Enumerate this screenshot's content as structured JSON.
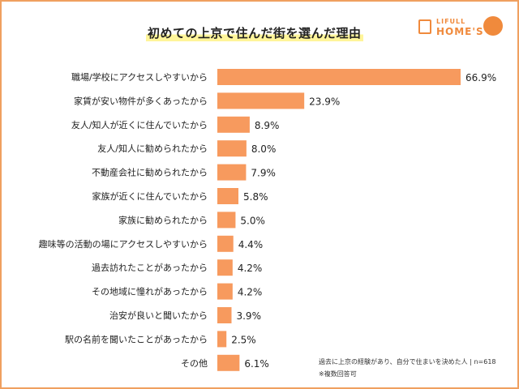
{
  "title": "初めての上京で住んだ街を選んだ理由",
  "logo": {
    "small": "LIFULL",
    "big": "HOME'S"
  },
  "notes": [
    "過去に上京の経験があり、自分で住まいを決めた人 | n=618",
    "※複数回答可"
  ],
  "colors": {
    "bar": "#f79a5e",
    "frame": "#f0a060",
    "title_highlight": "#fff59a"
  },
  "chart_data": {
    "type": "bar",
    "orientation": "horizontal",
    "title": "初めての上京で住んだ街を選んだ理由",
    "categories": [
      "職場/学校にアクセスしやすいから",
      "家賃が安い物件が多くあったから",
      "友人/知人が近くに住んでいたから",
      "友人/知人に勧められたから",
      "不動産会社に勧められたから",
      "家族が近くに住んでいたから",
      "家族に勧められたから",
      "趣味等の活動の場にアクセスしやすいから",
      "過去訪れたことがあったから",
      "その地域に憧れがあったから",
      "治安が良いと聞いたから",
      "駅の名前を聞いたことがあったから",
      "その他"
    ],
    "values": [
      66.9,
      23.9,
      8.9,
      8.0,
      7.9,
      5.8,
      5.0,
      4.4,
      4.2,
      4.2,
      3.9,
      2.5,
      6.1
    ],
    "labels": [
      "66.9%",
      "23.9%",
      "8.9%",
      "8.0%",
      "7.9%",
      "5.8%",
      "5.0%",
      "4.4%",
      "4.2%",
      "4.2%",
      "3.9%",
      "2.5%",
      "6.1%"
    ],
    "unit": "%",
    "grid": false
  }
}
